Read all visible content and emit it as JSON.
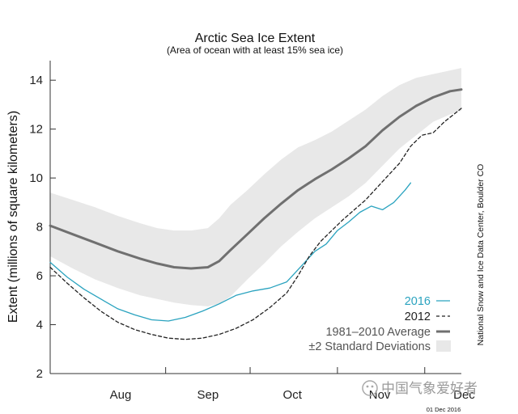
{
  "chart_data": {
    "type": "line",
    "title": "Arctic Sea Ice Extent",
    "subtitle": "(Area of ocean with at least 15% sea ice)",
    "xlabel": "",
    "ylabel": "Extent (millions of square kilometers)",
    "ylim": [
      2,
      14.8
    ],
    "yticks": [
      2,
      4,
      6,
      8,
      10,
      12,
      14
    ],
    "x_unit": "days since Jul 21",
    "xlim": [
      0,
      146
    ],
    "month_ticks": [
      {
        "label": "Aug",
        "day": 25
      },
      {
        "label": "Sep",
        "day": 56
      },
      {
        "label": "Oct",
        "day": 86
      },
      {
        "label": "Nov",
        "day": 117
      },
      {
        "label": "Dec",
        "day": 147
      }
    ],
    "month_boundaries": [
      41,
      71,
      102,
      133
    ],
    "series": [
      {
        "name": "1981–2010 Average",
        "style": "solid",
        "color": "#707070",
        "x": [
          0,
          8,
          16,
          24,
          32,
          38,
          44,
          50,
          56,
          60,
          64,
          70,
          76,
          82,
          88,
          94,
          100,
          106,
          112,
          118,
          124,
          130,
          136,
          142,
          146
        ],
        "values": [
          8.05,
          7.7,
          7.35,
          7.0,
          6.7,
          6.5,
          6.35,
          6.3,
          6.35,
          6.6,
          7.05,
          7.7,
          8.35,
          8.95,
          9.5,
          9.95,
          10.35,
          10.8,
          11.3,
          11.95,
          12.5,
          12.95,
          13.3,
          13.55,
          13.62
        ]
      },
      {
        "name": "2016",
        "style": "solid",
        "color": "#2aa3bf",
        "x": [
          0,
          6,
          12,
          18,
          24,
          30,
          36,
          42,
          48,
          54,
          60,
          66,
          72,
          78,
          84,
          90,
          94,
          98,
          102,
          106,
          110,
          114,
          118,
          122,
          126,
          128
        ],
        "values": [
          6.55,
          5.95,
          5.45,
          5.05,
          4.65,
          4.4,
          4.2,
          4.15,
          4.3,
          4.55,
          4.85,
          5.2,
          5.38,
          5.5,
          5.75,
          6.5,
          7.0,
          7.3,
          7.85,
          8.2,
          8.6,
          8.85,
          8.7,
          9.0,
          9.5,
          9.8
        ]
      },
      {
        "name": "2012",
        "style": "dashed",
        "color": "#222222",
        "x": [
          0,
          6,
          12,
          18,
          24,
          30,
          36,
          42,
          48,
          54,
          60,
          66,
          72,
          78,
          84,
          88,
          92,
          96,
          100,
          104,
          108,
          112,
          116,
          120,
          124,
          128,
          132,
          136,
          140,
          146
        ],
        "values": [
          6.35,
          5.7,
          5.1,
          4.55,
          4.1,
          3.8,
          3.6,
          3.45,
          3.4,
          3.45,
          3.6,
          3.85,
          4.2,
          4.7,
          5.3,
          6.0,
          6.8,
          7.4,
          7.85,
          8.3,
          8.7,
          9.1,
          9.6,
          10.1,
          10.6,
          11.3,
          11.75,
          11.85,
          12.3,
          12.85
        ]
      }
    ],
    "band": {
      "name": "±2 Standard Deviations",
      "color": "#e8e8e8",
      "x": [
        0,
        8,
        16,
        24,
        32,
        38,
        44,
        50,
        56,
        60,
        64,
        70,
        76,
        82,
        88,
        94,
        100,
        106,
        112,
        118,
        124,
        130,
        136,
        142,
        146
      ],
      "upper": [
        9.4,
        9.1,
        8.8,
        8.45,
        8.15,
        7.95,
        7.85,
        7.85,
        7.95,
        8.35,
        8.9,
        9.5,
        10.15,
        10.75,
        11.25,
        11.55,
        11.9,
        12.35,
        12.8,
        13.35,
        13.8,
        14.1,
        14.25,
        14.4,
        14.5
      ],
      "lower": [
        6.8,
        6.3,
        5.85,
        5.5,
        5.2,
        5.05,
        4.9,
        4.8,
        4.75,
        4.85,
        5.15,
        5.85,
        6.5,
        7.2,
        7.8,
        8.35,
        8.8,
        9.25,
        9.8,
        10.5,
        11.2,
        11.75,
        12.3,
        12.6,
        12.75
      ]
    },
    "legend": [
      {
        "label": "2016",
        "symbol": "line-2016"
      },
      {
        "label": "2012",
        "symbol": "dash-2012"
      },
      {
        "label": "1981–2010 Average",
        "symbol": "line-average"
      },
      {
        "label": "±2 Standard Deviations",
        "symbol": "band"
      }
    ],
    "legend_position": "bottom-right",
    "credit": "National Snow and Ice Data Center, Boulder CO",
    "date_stamp": "01 Dec 2016",
    "watermark": "中国气象爱好者"
  }
}
